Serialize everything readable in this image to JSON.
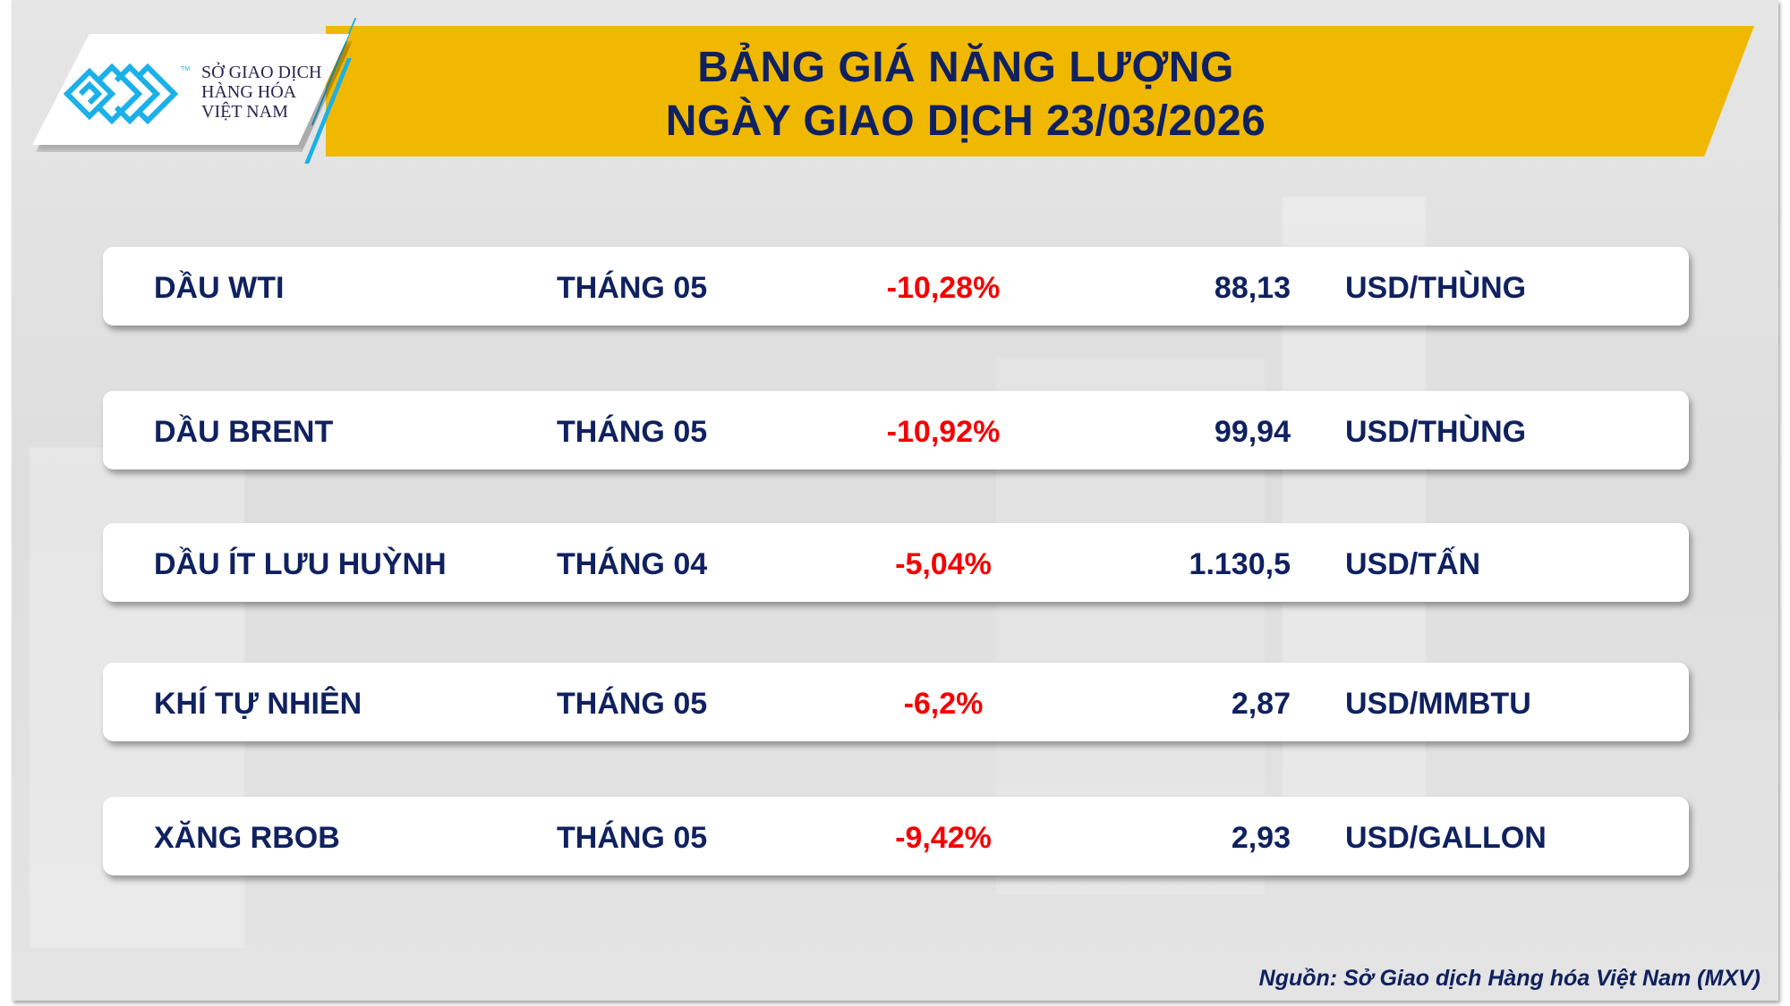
{
  "header": {
    "title_line1": "BẢNG GIÁ NĂNG LƯỢNG",
    "title_line2": "NGÀY GIAO DỊCH 23/03/2026"
  },
  "logo": {
    "line1": "SỞ GIAO DỊCH",
    "line2": "HÀNG HÓA",
    "line3": "VIỆT NAM",
    "tm": "TM",
    "brand_color": "#1bb0e8"
  },
  "colors": {
    "banner": "#f0b800",
    "text": "#0f2160",
    "negative": "#f50000"
  },
  "rows": [
    {
      "name": "DẦU WTI",
      "month": "THÁNG 05",
      "change": "-10,28%",
      "price": "88,13",
      "unit": "USD/THÙNG"
    },
    {
      "name": "DẦU BRENT",
      "month": "THÁNG 05",
      "change": "-10,92%",
      "price": "99,94",
      "unit": "USD/THÙNG"
    },
    {
      "name": "DẦU ÍT LƯU HUỲNH",
      "month": "THÁNG 04",
      "change": "-5,04%",
      "price": "1.130,5",
      "unit": "USD/TẤN"
    },
    {
      "name": "KHÍ TỰ NHIÊN",
      "month": "THÁNG 05",
      "change": "-6,2%",
      "price": "2,87",
      "unit": "USD/MMBTU"
    },
    {
      "name": "XĂNG RBOB",
      "month": "THÁNG 05",
      "change": "-9,42%",
      "price": "2,93",
      "unit": "USD/GALLON"
    }
  ],
  "footer": {
    "source": "Nguồn: Sở Giao dịch Hàng hóa Việt Nam (MXV)"
  }
}
